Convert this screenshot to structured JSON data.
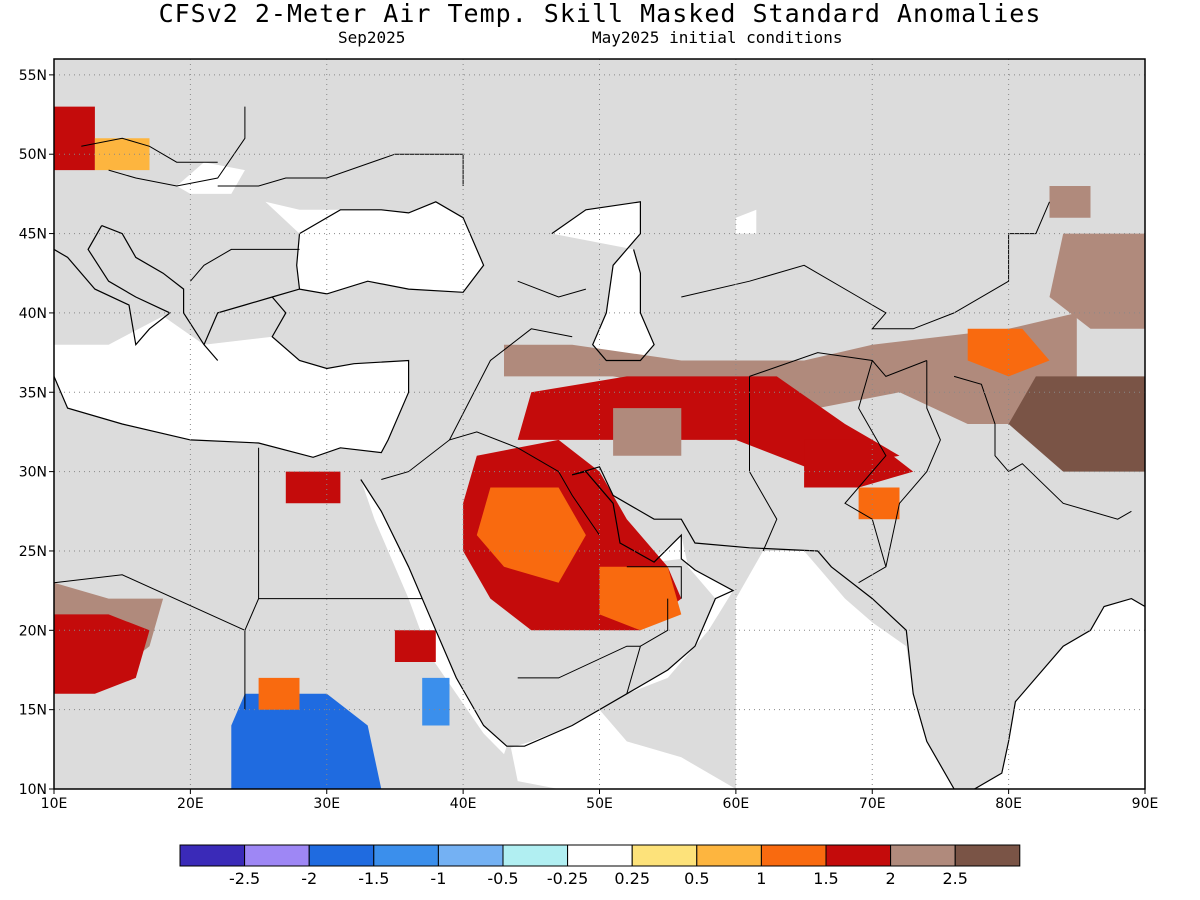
{
  "header": {
    "title": "CFSv2 2-Meter Air Temp. Skill Masked Standard Anomalies",
    "target_month": "Sep2025",
    "initial_conditions": "May2025 initial conditions"
  },
  "map": {
    "lon_range": [
      10,
      90
    ],
    "lat_range": [
      10,
      56
    ],
    "lon_ticks": [
      {
        "v": 10,
        "label": "10E"
      },
      {
        "v": 20,
        "label": "20E"
      },
      {
        "v": 30,
        "label": "30E"
      },
      {
        "v": 40,
        "label": "40E"
      },
      {
        "v": 50,
        "label": "50E"
      },
      {
        "v": 60,
        "label": "60E"
      },
      {
        "v": 70,
        "label": "70E"
      },
      {
        "v": 80,
        "label": "80E"
      },
      {
        "v": 90,
        "label": "90E"
      }
    ],
    "lat_ticks": [
      {
        "v": 10,
        "label": "10N"
      },
      {
        "v": 15,
        "label": "15N"
      },
      {
        "v": 20,
        "label": "20N"
      },
      {
        "v": 25,
        "label": "25N"
      },
      {
        "v": 30,
        "label": "30N"
      },
      {
        "v": 35,
        "label": "35N"
      },
      {
        "v": 40,
        "label": "40N"
      },
      {
        "v": 45,
        "label": "45N"
      },
      {
        "v": 50,
        "label": "50N"
      },
      {
        "v": 55,
        "label": "55N"
      }
    ],
    "masked_color": "#dcdcdc",
    "grid": "dotted"
  },
  "colorbar": {
    "bins": [
      {
        "color": "#3a2ab8"
      },
      {
        "color": "#9e87f5"
      },
      {
        "color": "#1f6be0"
      },
      {
        "color": "#3b8fec"
      },
      {
        "color": "#74b1f3"
      },
      {
        "color": "#b1eff2"
      },
      {
        "color": "#ffffff"
      },
      {
        "color": "#fde27a"
      },
      {
        "color": "#fdb53f"
      },
      {
        "color": "#f96a0f"
      },
      {
        "color": "#c40b0b"
      },
      {
        "color": "#b08a7c"
      },
      {
        "color": "#7a5446"
      }
    ],
    "labels": [
      "-2.5",
      "-2",
      "-1.5",
      "-1",
      "-0.5",
      "-0.25",
      "0.25",
      "0.5",
      "1",
      "1.5",
      "2",
      "2.5"
    ]
  },
  "anomaly_regions": [
    {
      "level": "2",
      "poly": [
        [
          43,
          38
        ],
        [
          48,
          38
        ],
        [
          56,
          37
        ],
        [
          65,
          37
        ],
        [
          70,
          38
        ],
        [
          80,
          39
        ],
        [
          85,
          40
        ],
        [
          85,
          36
        ],
        [
          82,
          33
        ],
        [
          77,
          33
        ],
        [
          72,
          35
        ],
        [
          66,
          34
        ],
        [
          58,
          35
        ],
        [
          51,
          36
        ],
        [
          46,
          36
        ],
        [
          43,
          36
        ]
      ]
    },
    {
      "level": "1.5",
      "poly": [
        [
          45,
          35
        ],
        [
          52,
          36
        ],
        [
          63,
          36
        ],
        [
          68,
          33
        ],
        [
          72,
          31
        ],
        [
          66,
          30
        ],
        [
          60,
          32
        ],
        [
          54,
          32
        ],
        [
          48,
          32
        ],
        [
          44,
          32
        ]
      ]
    },
    {
      "level": "1.5",
      "poly": [
        [
          41,
          31
        ],
        [
          47,
          32
        ],
        [
          50,
          30
        ],
        [
          52,
          27
        ],
        [
          55,
          24
        ],
        [
          56,
          22
        ],
        [
          53,
          20
        ],
        [
          45,
          20
        ],
        [
          42,
          22
        ],
        [
          40,
          25
        ],
        [
          40,
          28
        ]
      ]
    },
    {
      "level": "1",
      "poly": [
        [
          42,
          29
        ],
        [
          47,
          29
        ],
        [
          49,
          26
        ],
        [
          47,
          23
        ],
        [
          43,
          24
        ],
        [
          41,
          26
        ]
      ]
    },
    {
      "level": "1",
      "poly": [
        [
          50,
          24
        ],
        [
          55,
          24
        ],
        [
          56,
          21
        ],
        [
          53,
          20
        ],
        [
          50,
          21
        ]
      ]
    },
    {
      "level": "1",
      "poly": [
        [
          77,
          39
        ],
        [
          81,
          39
        ],
        [
          83,
          37
        ],
        [
          80,
          36
        ],
        [
          77,
          37
        ]
      ]
    },
    {
      "level": "2",
      "poly": [
        [
          10,
          23
        ],
        [
          14,
          22
        ],
        [
          18,
          22
        ],
        [
          17,
          19
        ],
        [
          14,
          17
        ],
        [
          10,
          17
        ]
      ]
    },
    {
      "level": "1.5",
      "poly": [
        [
          10,
          21
        ],
        [
          14,
          21
        ],
        [
          17,
          20
        ],
        [
          16,
          17
        ],
        [
          13,
          16
        ],
        [
          10,
          16
        ]
      ]
    },
    {
      "level": "1.5",
      "poly": [
        [
          65,
          32
        ],
        [
          70,
          32
        ],
        [
          73,
          30
        ],
        [
          69,
          29
        ],
        [
          65,
          29
        ]
      ]
    },
    {
      "level": "2",
      "poly": [
        [
          84,
          45
        ],
        [
          90,
          45
        ],
        [
          90,
          39
        ],
        [
          86,
          39
        ],
        [
          83,
          41
        ]
      ]
    },
    {
      "level": "2.5",
      "poly": [
        [
          82,
          36
        ],
        [
          90,
          36
        ],
        [
          90,
          30
        ],
        [
          84,
          30
        ],
        [
          80,
          33
        ]
      ]
    },
    {
      "level": "1.5",
      "poly": [
        [
          10,
          53
        ],
        [
          13,
          53
        ],
        [
          13,
          49
        ],
        [
          10,
          49
        ]
      ]
    },
    {
      "level": "0.5",
      "poly": [
        [
          13,
          51
        ],
        [
          17,
          51
        ],
        [
          17,
          49
        ],
        [
          13,
          49
        ]
      ]
    },
    {
      "level": "2",
      "poly": [
        [
          83,
          48
        ],
        [
          86,
          48
        ],
        [
          86,
          46
        ],
        [
          83,
          46
        ]
      ]
    },
    {
      "level": "2",
      "poly": [
        [
          51,
          34
        ],
        [
          56,
          34
        ],
        [
          56,
          31
        ],
        [
          51,
          31
        ]
      ]
    },
    {
      "level": "1.5",
      "poly": [
        [
          27,
          30
        ],
        [
          31,
          30
        ],
        [
          31,
          28
        ],
        [
          27,
          28
        ]
      ]
    },
    {
      "level": "1.5",
      "poly": [
        [
          35,
          20
        ],
        [
          38,
          20
        ],
        [
          38,
          18
        ],
        [
          35,
          18
        ]
      ]
    },
    {
      "level": "-1.5",
      "poly": [
        [
          24,
          16
        ],
        [
          30,
          16
        ],
        [
          33,
          14
        ],
        [
          34,
          10
        ],
        [
          23,
          10
        ],
        [
          23,
          14
        ]
      ]
    },
    {
      "level": "-1",
      "poly": [
        [
          37,
          17
        ],
        [
          39,
          17
        ],
        [
          39,
          14
        ],
        [
          37,
          14
        ]
      ]
    },
    {
      "level": "1",
      "poly": [
        [
          25,
          17
        ],
        [
          28,
          17
        ],
        [
          28,
          15
        ],
        [
          25,
          15
        ]
      ]
    },
    {
      "level": "1",
      "poly": [
        [
          69,
          29
        ],
        [
          72,
          29
        ],
        [
          72,
          27
        ],
        [
          69,
          27
        ]
      ]
    }
  ]
}
